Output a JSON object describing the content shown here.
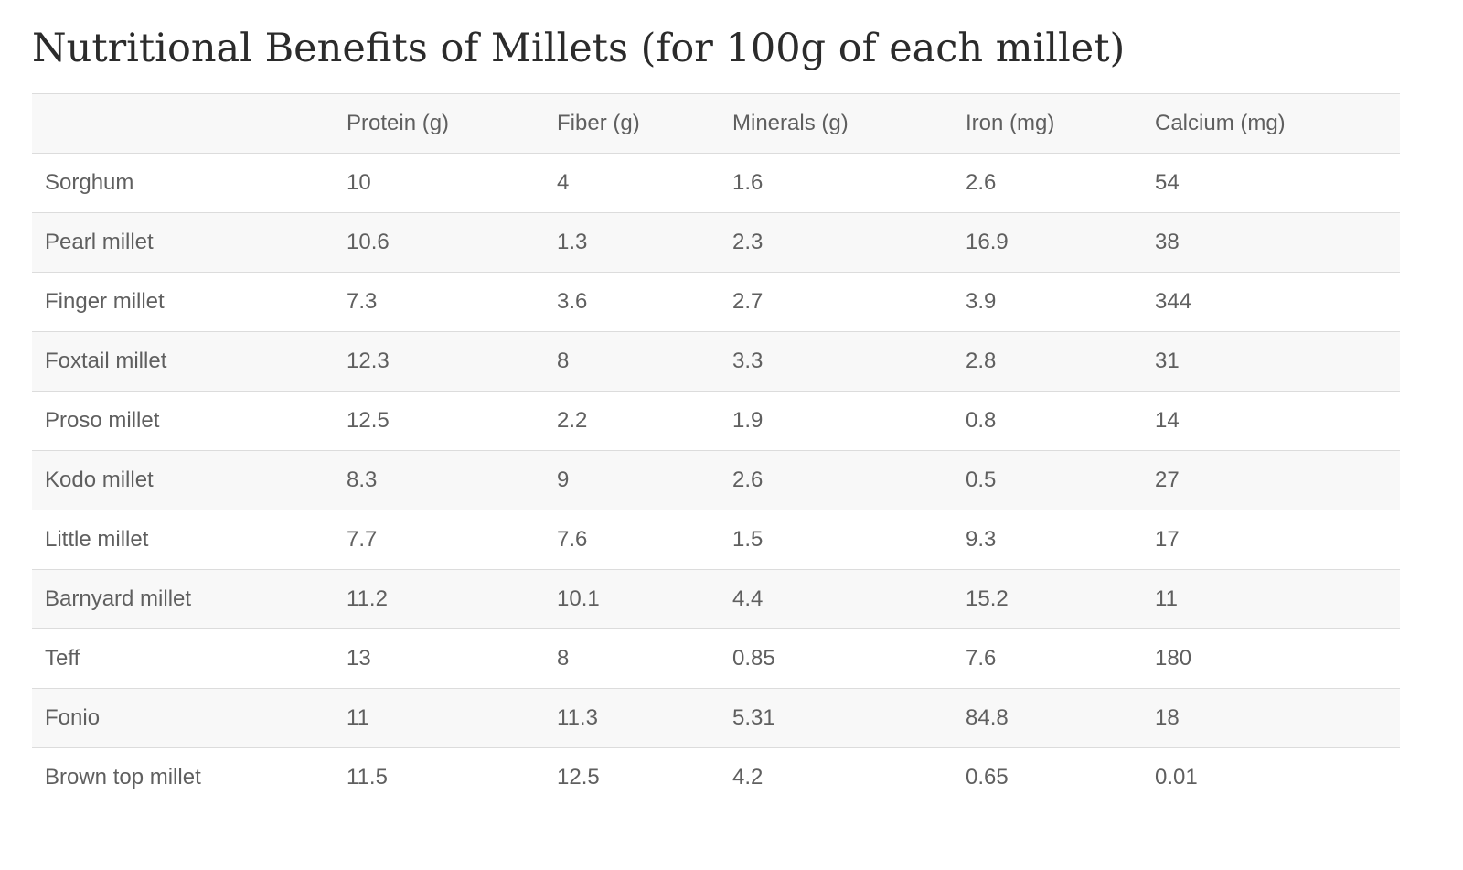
{
  "title": "Nutritional Benefits of Millets (for 100g of each millet)",
  "table": {
    "headers": [
      "",
      "Protein (g)",
      "Fiber (g)",
      "Minerals (g)",
      "Iron (mg)",
      "Calcium (mg)"
    ],
    "rows": [
      [
        "Sorghum",
        "10",
        "4",
        "1.6",
        "2.6",
        "54"
      ],
      [
        "Pearl millet",
        "10.6",
        "1.3",
        "2.3",
        "16.9",
        "38"
      ],
      [
        "Finger millet",
        "7.3",
        "3.6",
        "2.7",
        "3.9",
        "344"
      ],
      [
        "Foxtail millet",
        "12.3",
        "8",
        "3.3",
        "2.8",
        "31"
      ],
      [
        "Proso millet",
        "12.5",
        "2.2",
        "1.9",
        "0.8",
        "14"
      ],
      [
        "Kodo millet",
        "8.3",
        "9",
        "2.6",
        "0.5",
        "27"
      ],
      [
        "Little millet",
        "7.7",
        "7.6",
        "1.5",
        "9.3",
        "17"
      ],
      [
        "Barnyard millet",
        "11.2",
        "10.1",
        "4.4",
        "15.2",
        "11"
      ],
      [
        "Teff",
        "13",
        "8",
        "0.85",
        "7.6",
        "180"
      ],
      [
        "Fonio",
        "11",
        "11.3",
        "5.31",
        "84.8",
        "18"
      ],
      [
        "Brown top millet",
        "11.5",
        "12.5",
        "4.2",
        "0.65",
        "0.01"
      ]
    ]
  },
  "colors": {
    "title_text": "#2b2b2b",
    "cell_text": "#5f5f5f",
    "stripe": "#f8f8f8",
    "rule": "#dcdcdc"
  }
}
